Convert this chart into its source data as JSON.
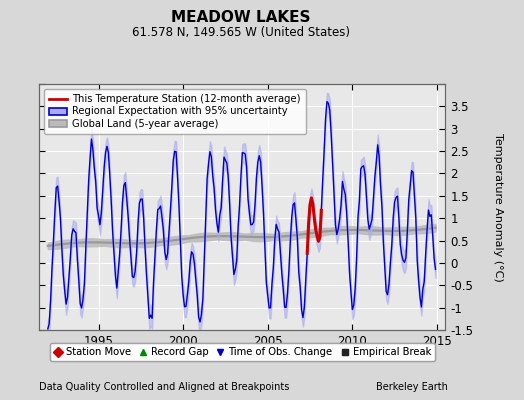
{
  "title": "MEADOW LAKES",
  "subtitle": "61.578 N, 149.565 W (United States)",
  "xlabel_bottom": "Data Quality Controlled and Aligned at Breakpoints",
  "xlabel_right": "Berkeley Earth",
  "ylabel": "Temperature Anomaly (°C)",
  "ylim": [
    -1.5,
    4.0
  ],
  "xlim": [
    1991.5,
    2015.5
  ],
  "yticks": [
    -1.5,
    -1.0,
    -0.5,
    0.0,
    0.5,
    1.0,
    1.5,
    2.0,
    2.5,
    3.0,
    3.5,
    4.0
  ],
  "xticks": [
    1995,
    2000,
    2005,
    2010,
    2015
  ],
  "bg_color": "#d8d8d8",
  "plot_bg_color": "#e8e8e8",
  "grid_color": "#ffffff",
  "blue_line_color": "#0000cc",
  "blue_fill_color": "#aaaaee",
  "red_line_color": "#cc0000",
  "gray_line_color": "#999999",
  "gray_fill_color": "#bbbbbb",
  "legend_items": [
    {
      "label": "This Temperature Station (12-month average)",
      "color": "#cc0000",
      "lw": 2
    },
    {
      "label": "Regional Expectation with 95% uncertainty",
      "color": "#0000cc",
      "lw": 1.5
    },
    {
      "label": "Global Land (5-year average)",
      "color": "#999999",
      "lw": 2
    }
  ],
  "bottom_legend": [
    {
      "marker": "D",
      "color": "#cc0000",
      "label": "Station Move"
    },
    {
      "marker": "^",
      "color": "#008800",
      "label": "Record Gap"
    },
    {
      "marker": "v",
      "color": "#0000cc",
      "label": "Time of Obs. Change"
    },
    {
      "marker": "s",
      "color": "#222222",
      "label": "Empirical Break"
    }
  ]
}
